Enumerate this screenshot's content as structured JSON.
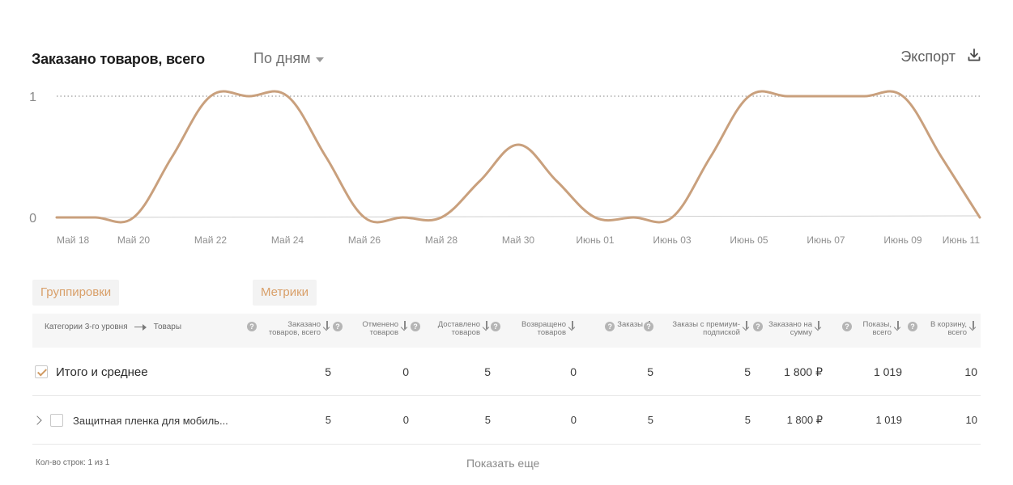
{
  "header": {
    "title": "Заказано товаров, всего",
    "period_select": "По дням",
    "export_label": "Экспорт"
  },
  "chart_data": {
    "type": "line",
    "title": "",
    "xlabel": "",
    "ylabel": "",
    "ylim": [
      0,
      1
    ],
    "y_ticks": [
      "0",
      "1"
    ],
    "x_tick_labels": [
      "Май 18",
      "Май 20",
      "Май 22",
      "Май 24",
      "Май 26",
      "Май 28",
      "Май 30",
      "Июнь 01",
      "Июнь 03",
      "Июнь 05",
      "Июнь 07",
      "Июнь 09",
      "Июнь 11"
    ],
    "x": [
      "Май 18",
      "Май 19",
      "Май 20",
      "Май 21",
      "Май 22",
      "Май 23",
      "Май 24",
      "Май 25",
      "Май 26",
      "Май 27",
      "Май 28",
      "Май 29",
      "Май 30",
      "Май 31",
      "Июнь 01",
      "Июнь 02",
      "Июнь 03",
      "Июнь 04",
      "Июнь 05",
      "Июнь 06",
      "Июнь 07",
      "Июнь 08",
      "Июнь 09",
      "Июнь 10",
      "Июнь 11"
    ],
    "series": [
      {
        "values": [
          0,
          0,
          0,
          0.5,
          1,
          1,
          1,
          0.5,
          0,
          0,
          0,
          0.3,
          0.6,
          0.3,
          0,
          0,
          0,
          0.5,
          1,
          1,
          1,
          1,
          1,
          0.5,
          0
        ],
        "color": "#c9a07d"
      }
    ],
    "reference_line": {
      "value": 1,
      "style": "dotted"
    },
    "grid": false,
    "legend": "none"
  },
  "tabs": {
    "groupings": "Группировки",
    "metrics": "Метрики"
  },
  "table": {
    "breadcrumb_from": "Категории 3-го уровня",
    "breadcrumb_to": "Товары",
    "columns": [
      {
        "label": "Заказано товаров, всего"
      },
      {
        "label": "Отменено товаров"
      },
      {
        "label": "Доставлено товаров"
      },
      {
        "label": "Возвращено товаров"
      },
      {
        "label": "Заказы"
      },
      {
        "label": "Заказы с премиум-подпиской"
      },
      {
        "label": "Заказано на сумму"
      },
      {
        "label": "Показы, всего"
      },
      {
        "label": "В корзину, всего"
      }
    ],
    "rows": [
      {
        "label": "Итого и среднее",
        "checked": true,
        "values": [
          "5",
          "0",
          "5",
          "0",
          "5",
          "5",
          "1 800 ₽",
          "1 019",
          "10"
        ]
      },
      {
        "label": "Защитная пленка для мобиль...",
        "checked": false,
        "values": [
          "5",
          "0",
          "5",
          "0",
          "5",
          "5",
          "1 800 ₽",
          "1 019",
          "10"
        ]
      }
    ]
  },
  "footer": {
    "row_count": "Кол-во строк: 1 из 1",
    "show_more": "Показать еще"
  },
  "colors": {
    "line": "#c9a07d",
    "accent": "#d9a06a",
    "tab_bg": "#f3f3f3"
  }
}
